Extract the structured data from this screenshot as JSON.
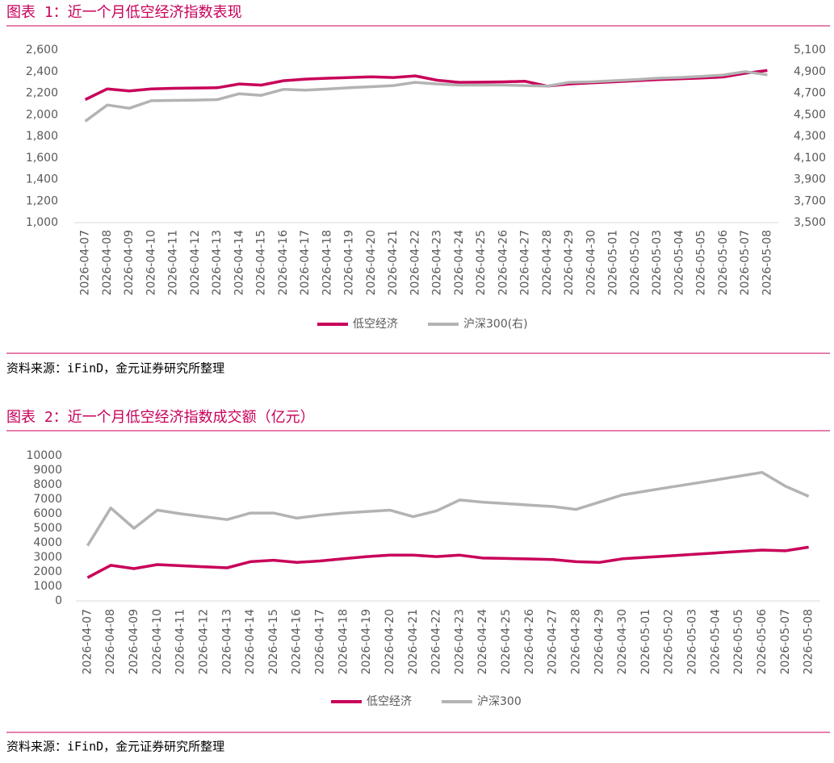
{
  "chart_data": [
    {
      "type": "line",
      "title": "图表 1：近一个月低空经济指数表现",
      "source": "资料来源：iFinD，金元证券研究所整理",
      "categories": [
        "2026-04-07",
        "2026-04-08",
        "2026-04-09",
        "2026-04-10",
        "2026-04-11",
        "2026-04-12",
        "2026-04-13",
        "2026-04-14",
        "2026-04-15",
        "2026-04-16",
        "2026-04-17",
        "2026-04-18",
        "2026-04-19",
        "2026-04-20",
        "2026-04-21",
        "2026-04-22",
        "2026-04-23",
        "2026-04-24",
        "2026-04-25",
        "2026-04-26",
        "2026-04-27",
        "2026-04-28",
        "2026-04-29",
        "2026-04-30",
        "2026-05-01",
        "2026-05-02",
        "2026-05-03",
        "2026-05-04",
        "2026-05-05",
        "2026-05-06",
        "2026-05-07",
        "2026-05-08"
      ],
      "series": [
        {
          "name": "低空经济",
          "color": "#c8005a",
          "values": [
            2140,
            2240,
            2220,
            2240,
            2245,
            2248,
            2250,
            2285,
            2275,
            2315,
            2330,
            2338,
            2345,
            2352,
            2345,
            2360,
            2320,
            2300,
            2302,
            2305,
            2310,
            2265,
            2285,
            2295,
            2305,
            2315,
            2325,
            2333,
            2340,
            2350,
            2385,
            2410
          ]
        },
        {
          "name": "沪深300(右)",
          "color": "#b3b3b3",
          "axis": "y2",
          "values": [
            4440,
            4590,
            4560,
            4630,
            4633,
            4636,
            4640,
            4695,
            4680,
            4735,
            4728,
            4738,
            4750,
            4760,
            4770,
            4800,
            4785,
            4775,
            4775,
            4775,
            4770,
            4765,
            4800,
            4805,
            4815,
            4825,
            4838,
            4845,
            4855,
            4868,
            4900,
            4870
          ]
        }
      ],
      "ylim": [
        1000,
        2600
      ],
      "yticks": [
        {
          "value": 1000,
          "label": "1,000"
        },
        {
          "value": 1200,
          "label": "1,200"
        },
        {
          "value": 1400,
          "label": "1,400"
        },
        {
          "value": 1600,
          "label": "1,600"
        },
        {
          "value": 1800,
          "label": "1,800"
        },
        {
          "value": 2000,
          "label": "2,000"
        },
        {
          "value": 2200,
          "label": "2,200"
        },
        {
          "value": 2400,
          "label": "2,400"
        },
        {
          "value": 2600,
          "label": "2,600"
        }
      ],
      "y2lim": [
        3500,
        5100
      ],
      "y2ticks": [
        {
          "value": 3500,
          "label": "3,500"
        },
        {
          "value": 3700,
          "label": "3,700"
        },
        {
          "value": 3900,
          "label": "3,900"
        },
        {
          "value": 4100,
          "label": "4,100"
        },
        {
          "value": 4300,
          "label": "4,300"
        },
        {
          "value": 4500,
          "label": "4,500"
        },
        {
          "value": 4700,
          "label": "4,700"
        },
        {
          "value": 4900,
          "label": "4,900"
        },
        {
          "value": 5100,
          "label": "5,100"
        }
      ]
    },
    {
      "type": "line",
      "title": "图表 2：近一个月低空经济指数成交额（亿元）",
      "source": "资料来源：iFinD，金元证券研究所整理",
      "categories": [
        "2026-04-07",
        "2026-04-08",
        "2026-04-09",
        "2026-04-10",
        "2026-04-11",
        "2026-04-12",
        "2026-04-13",
        "2026-04-14",
        "2026-04-15",
        "2026-04-16",
        "2026-04-17",
        "2026-04-18",
        "2026-04-19",
        "2026-04-20",
        "2026-04-21",
        "2026-04-22",
        "2026-04-23",
        "2026-04-24",
        "2026-04-25",
        "2026-04-26",
        "2026-04-27",
        "2026-04-28",
        "2026-04-29",
        "2026-04-30",
        "2026-05-01",
        "2026-05-02",
        "2026-05-03",
        "2026-05-04",
        "2026-05-05",
        "2026-05-06",
        "2026-05-07",
        "2026-05-08"
      ],
      "series": [
        {
          "name": "低空经济",
          "color": "#c8005a",
          "values": [
            1600,
            2450,
            2220,
            2500,
            2420,
            2350,
            2280,
            2700,
            2800,
            2650,
            2750,
            2900,
            3050,
            3150,
            3150,
            3050,
            3150,
            2950,
            2920,
            2890,
            2850,
            2700,
            2650,
            2900,
            3000,
            3100,
            3200,
            3300,
            3400,
            3500,
            3450,
            3700
          ]
        },
        {
          "name": "沪深300",
          "color": "#b3b3b3",
          "values": [
            3800,
            6400,
            5000,
            6250,
            6000,
            5800,
            5600,
            6050,
            6050,
            5700,
            5900,
            6050,
            6150,
            6250,
            5800,
            6200,
            6950,
            6800,
            6700,
            6600,
            6500,
            6300,
            6800,
            7300,
            7560,
            7820,
            8070,
            8330,
            8590,
            8850,
            7900,
            7200
          ]
        }
      ],
      "ylim": [
        0,
        10000
      ],
      "yticks": [
        0,
        1000,
        2000,
        3000,
        4000,
        5000,
        6000,
        7000,
        8000,
        9000,
        10000
      ]
    }
  ]
}
